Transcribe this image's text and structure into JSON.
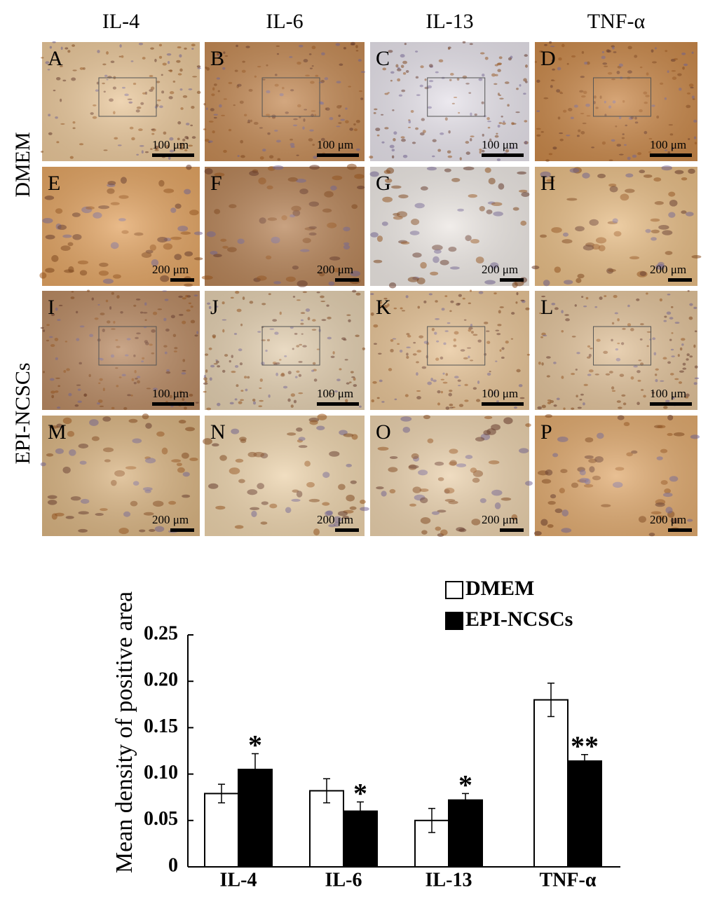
{
  "panels": {
    "columns": [
      "IL-4",
      "IL-6",
      "IL-13",
      "TNF-α"
    ],
    "rows": [
      "DMEM",
      "EPI-NCSCs"
    ],
    "items": [
      {
        "letter": "A",
        "scale": "100 μm"
      },
      {
        "letter": "B",
        "scale": "100 μm"
      },
      {
        "letter": "C",
        "scale": "100 μm"
      },
      {
        "letter": "D",
        "scale": "100 μm"
      },
      {
        "letter": "E",
        "scale": "200 μm"
      },
      {
        "letter": "F",
        "scale": "200 μm"
      },
      {
        "letter": "G",
        "scale": "200 μm"
      },
      {
        "letter": "H",
        "scale": "200 μm"
      },
      {
        "letter": "I",
        "scale": "100 μm"
      },
      {
        "letter": "J",
        "scale": "100 μm"
      },
      {
        "letter": "K",
        "scale": "100 μm"
      },
      {
        "letter": "L",
        "scale": "100 μm"
      },
      {
        "letter": "M",
        "scale": "200 μm"
      },
      {
        "letter": "N",
        "scale": "200 μm"
      },
      {
        "letter": "O",
        "scale": "200 μm"
      },
      {
        "letter": "P",
        "scale": "200 μm"
      }
    ]
  },
  "chart_data": {
    "type": "bar",
    "y_label": "Mean density of positive area",
    "categories": [
      "IL-4",
      "IL-6",
      "IL-13",
      "TNF-α"
    ],
    "series": [
      {
        "name": "DMEM",
        "color": "#ffffff",
        "values": [
          0.079,
          0.082,
          0.05,
          0.18
        ],
        "errors": [
          0.01,
          0.013,
          0.013,
          0.018
        ]
      },
      {
        "name": "EPI-NCSCs",
        "color": "#000000",
        "values": [
          0.105,
          0.06,
          0.072,
          0.114
        ],
        "errors": [
          0.017,
          0.01,
          0.007,
          0.007
        ],
        "annotations": [
          "*",
          "*",
          "*",
          "**"
        ]
      }
    ],
    "ylim": [
      0,
      0.25
    ],
    "yticks": [
      0,
      0.05,
      {
        "value": 0.1,
        "label": "0.10"
      },
      0.15,
      {
        "value": 0.2,
        "label": "0.20"
      },
      0.25
    ],
    "legend": "upper right"
  }
}
